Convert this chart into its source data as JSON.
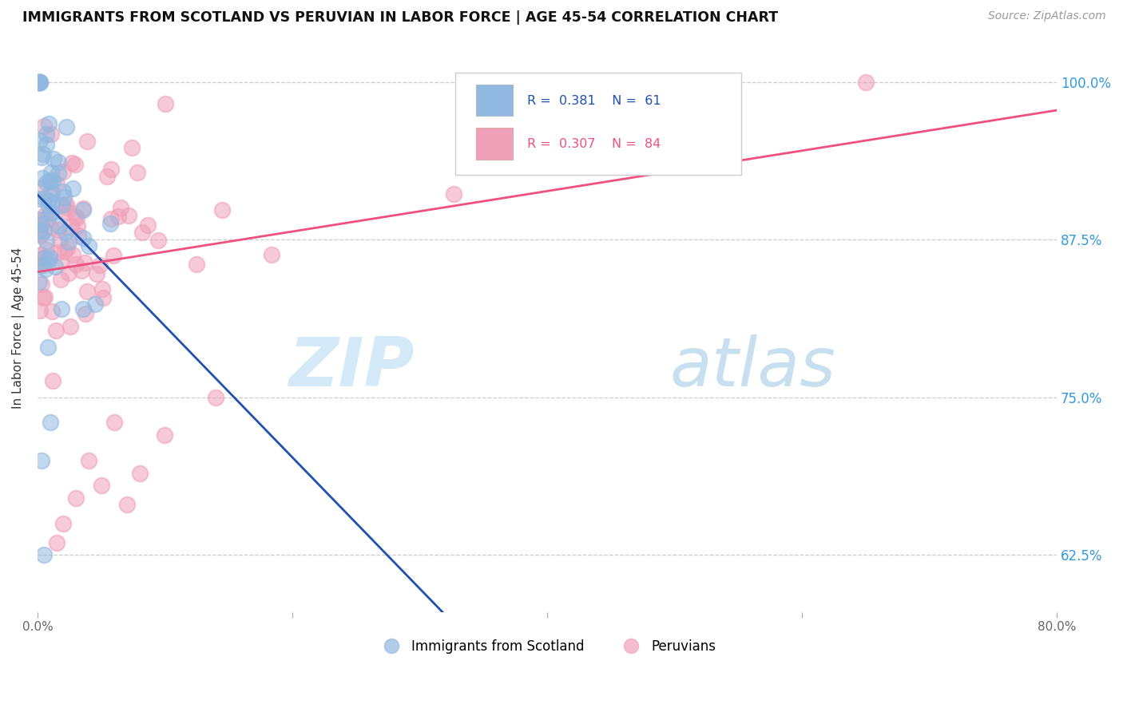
{
  "title": "IMMIGRANTS FROM SCOTLAND VS PERUVIAN IN LABOR FORCE | AGE 45-54 CORRELATION CHART",
  "source": "Source: ZipAtlas.com",
  "ylabel": "In Labor Force | Age 45-54",
  "xlabel": "",
  "xlim": [
    0.0,
    80.0
  ],
  "ylim": [
    58.0,
    103.0
  ],
  "yticks": [
    62.5,
    75.0,
    87.5,
    100.0
  ],
  "xticks": [
    0.0,
    20.0,
    40.0,
    60.0,
    80.0
  ],
  "xtick_labels": [
    "0.0%",
    "",
    "",
    "",
    "80.0%"
  ],
  "ytick_labels": [
    "62.5%",
    "75.0%",
    "87.5%",
    "100.0%"
  ],
  "scotland_R": 0.381,
  "scotland_N": 61,
  "peruvian_R": 0.307,
  "peruvian_N": 84,
  "scotland_color": "#90b8e0",
  "peruvian_color": "#f0a0b8",
  "scotland_line_color": "#2050b0",
  "peruvian_line_color": "#f05080",
  "watermark_zip": "ZIP",
  "watermark_atlas": "atlas",
  "legend_scotland_label": "Immigrants from Scotland",
  "legend_peruvian_label": "Peruvians"
}
